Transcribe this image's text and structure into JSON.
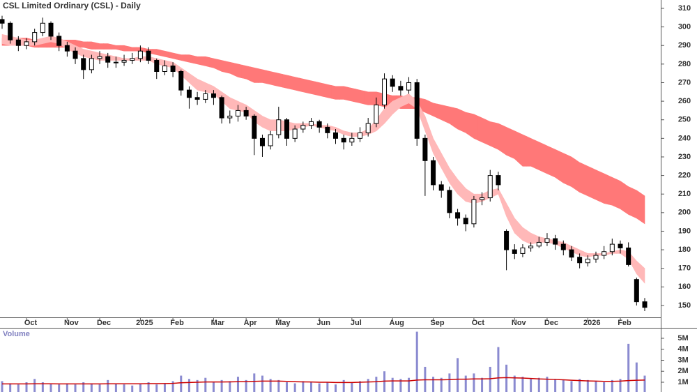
{
  "chart_data": {
    "type": "candlestick",
    "title": "CSL Limited Ordinary (CSL) - Daily",
    "categories": [
      null,
      null,
      null,
      "Oct",
      null,
      null,
      null,
      null,
      "Nov",
      null,
      null,
      null,
      "Dec",
      null,
      null,
      null,
      null,
      "2025",
      null,
      null,
      null,
      "Feb",
      null,
      null,
      null,
      null,
      "Mar",
      null,
      null,
      null,
      "Apr",
      null,
      null,
      null,
      "May",
      null,
      null,
      null,
      null,
      "Jun",
      null,
      null,
      null,
      "Jul",
      null,
      null,
      null,
      null,
      "Aug",
      null,
      null,
      null,
      null,
      "Sep",
      null,
      null,
      null,
      null,
      "Oct",
      null,
      null,
      null,
      null,
      "Nov",
      null,
      null,
      null,
      "Dec",
      null,
      null,
      null,
      null,
      "2026",
      null,
      null,
      null,
      "Feb",
      null,
      null,
      null
    ],
    "open": [
      304,
      302,
      293,
      290,
      292,
      297,
      302,
      295,
      290,
      287,
      283,
      277,
      283,
      284,
      281,
      281,
      282,
      283,
      287,
      282,
      276,
      279,
      276,
      266,
      262,
      261,
      264,
      262,
      251,
      252,
      255,
      252,
      240,
      236,
      242,
      250,
      240,
      245,
      247,
      249,
      246,
      243,
      240,
      238,
      240,
      243,
      248,
      258,
      272,
      268,
      266,
      270,
      240,
      228,
      215,
      212,
      200,
      197,
      194,
      207,
      208,
      220,
      190,
      180,
      178,
      181,
      182,
      184,
      186,
      183,
      180,
      176,
      173,
      175,
      177,
      179,
      183,
      181,
      164,
      152
    ],
    "high": [
      306,
      303,
      295,
      294,
      299,
      305,
      303,
      297,
      292,
      289,
      285,
      285,
      287,
      286,
      284,
      285,
      286,
      290,
      289,
      283,
      282,
      281,
      277,
      268,
      265,
      266,
      266,
      263,
      255,
      258,
      257,
      253,
      242,
      244,
      257,
      251,
      247,
      249,
      251,
      250,
      248,
      245,
      242,
      243,
      246,
      251,
      262,
      275,
      274,
      271,
      273,
      272,
      242,
      230,
      217,
      214,
      202,
      199,
      209,
      211,
      223,
      222,
      191,
      183,
      183,
      184,
      187,
      189,
      188,
      185,
      182,
      178,
      177,
      179,
      182,
      186,
      185,
      184,
      165,
      154
    ],
    "low": [
      299,
      291,
      287,
      288,
      290,
      295,
      293,
      287,
      284,
      280,
      272,
      275,
      280,
      278,
      278,
      279,
      280,
      281,
      280,
      272,
      274,
      273,
      263,
      256,
      258,
      259,
      258,
      248,
      248,
      249,
      250,
      231,
      230,
      234,
      240,
      236,
      238,
      243,
      245,
      243,
      240,
      237,
      234,
      236,
      238,
      241,
      246,
      256,
      265,
      263,
      264,
      236,
      209,
      212,
      208,
      197,
      193,
      190,
      192,
      204,
      206,
      212,
      169,
      175,
      176,
      179,
      181,
      182,
      180,
      177,
      174,
      170,
      171,
      173,
      175,
      177,
      178,
      171,
      150,
      147
    ],
    "close": [
      302,
      293,
      290,
      292,
      297,
      302,
      295,
      290,
      287,
      283,
      277,
      283,
      284,
      281,
      281,
      282,
      283,
      287,
      282,
      276,
      279,
      276,
      266,
      262,
      261,
      264,
      262,
      251,
      252,
      255,
      252,
      240,
      236,
      242,
      250,
      240,
      245,
      247,
      249,
      246,
      243,
      240,
      238,
      240,
      243,
      248,
      258,
      272,
      268,
      266,
      270,
      240,
      228,
      215,
      212,
      200,
      197,
      194,
      207,
      208,
      220,
      215,
      180,
      178,
      181,
      182,
      184,
      186,
      183,
      180,
      176,
      173,
      175,
      177,
      179,
      183,
      181,
      172,
      152,
      149
    ],
    "up_color": "#ffffff",
    "down_color": "#000000",
    "ribbons": [
      {
        "color": "#ff7878",
        "upper": [
          294,
          294,
          294,
          294,
          293,
          293,
          293,
          293,
          293,
          293,
          292,
          292,
          291,
          291,
          290,
          290,
          289,
          289,
          288,
          288,
          287,
          286,
          285,
          285,
          284,
          284,
          283,
          282,
          281,
          280,
          279,
          278,
          277,
          276,
          275,
          274,
          273,
          272,
          271,
          270,
          269,
          268,
          268,
          267,
          266,
          265,
          265,
          264,
          263,
          263,
          262,
          262,
          261,
          259,
          258,
          257,
          256,
          254,
          253,
          251,
          249,
          248,
          246,
          244,
          242,
          240,
          238,
          236,
          234,
          232,
          230,
          227,
          225,
          223,
          221,
          219,
          217,
          214,
          212,
          209
        ],
        "lower": [
          290,
          290,
          290,
          290,
          289,
          289,
          289,
          289,
          289,
          289,
          289,
          288,
          288,
          288,
          288,
          287,
          287,
          287,
          286,
          285,
          284,
          283,
          282,
          281,
          280,
          279,
          278,
          276,
          275,
          273,
          272,
          270,
          270,
          269,
          268,
          267,
          266,
          265,
          264,
          263,
          262,
          261,
          261,
          260,
          259,
          258,
          258,
          257,
          257,
          256,
          256,
          256,
          254,
          252,
          250,
          248,
          245,
          243,
          240,
          238,
          236,
          234,
          231,
          229,
          225,
          225,
          223,
          221,
          219,
          216,
          214,
          211,
          209,
          207,
          205,
          204,
          202,
          199,
          197,
          194
        ]
      },
      {
        "color": "#ffb8b8",
        "upper": [
          296,
          295,
          294,
          293,
          293,
          294,
          295,
          294,
          292,
          290,
          288,
          287,
          286,
          285,
          284,
          283,
          283,
          284,
          284,
          283,
          282,
          281,
          278,
          275,
          272,
          270,
          268,
          265,
          262,
          260,
          258,
          255,
          252,
          250,
          250,
          249,
          248,
          248,
          248,
          247,
          247,
          246,
          244,
          243,
          243,
          245,
          250,
          256,
          260,
          262,
          264,
          260,
          252,
          240,
          232,
          224,
          218,
          213,
          210,
          210,
          212,
          213,
          205,
          197,
          192,
          189,
          187,
          186,
          185,
          184,
          182,
          180,
          178,
          178,
          178,
          179,
          180,
          179,
          174,
          170
        ],
        "lower": [
          291,
          290,
          290,
          290,
          290,
          291,
          292,
          291,
          288,
          286,
          284,
          283,
          282,
          282,
          282,
          282,
          282,
          282,
          282,
          280,
          279,
          278,
          274,
          270,
          266,
          265,
          264,
          260,
          256,
          255,
          254,
          249,
          246,
          244,
          244,
          244,
          245,
          246,
          247,
          246,
          245,
          244,
          242,
          241,
          241,
          242,
          244,
          248,
          253,
          257,
          259,
          256,
          244,
          232,
          224,
          216,
          210,
          206,
          205,
          206,
          208,
          210,
          198,
          189,
          185,
          183,
          184,
          184,
          183,
          181,
          179,
          177,
          176,
          177,
          177,
          178,
          178,
          175,
          167,
          162
        ]
      }
    ],
    "ylim": [
      143.6,
      314.5
    ],
    "yticks": [
      150,
      160,
      170,
      180,
      190,
      200,
      210,
      220,
      230,
      240,
      250,
      260,
      270,
      280,
      290,
      300,
      310
    ],
    "volume": {
      "title": "Volume",
      "color": "#8a8ad0",
      "average_color": "#cc0000",
      "values": [
        1.1,
        0.9,
        0.8,
        1.0,
        1.3,
        1.0,
        0.9,
        0.8,
        0.9,
        0.8,
        1.0,
        0.9,
        0.8,
        1.2,
        0.9,
        0.8,
        0.7,
        0.9,
        1.0,
        0.8,
        0.9,
        1.1,
        1.6,
        1.3,
        1.2,
        1.4,
        1.0,
        1.2,
        1.1,
        1.5,
        1.2,
        1.8,
        1.6,
        1.3,
        1.2,
        1.0,
        0.9,
        1.1,
        1.0,
        0.9,
        1.0,
        0.8,
        1.2,
        1.0,
        1.1,
        1.3,
        1.5,
        2.0,
        1.4,
        1.3,
        1.4,
        5.6,
        2.4,
        1.5,
        1.4,
        1.8,
        3.2,
        1.6,
        1.8,
        1.4,
        2.4,
        4.2,
        2.6,
        1.6,
        1.5,
        1.3,
        1.4,
        1.5,
        1.3,
        1.2,
        1.1,
        1.3,
        1.2,
        1.1,
        1.0,
        1.2,
        1.3,
        4.5,
        2.8,
        1.6
      ],
      "average": [
        0.85,
        0.85,
        0.85,
        0.85,
        0.86,
        0.86,
        0.86,
        0.85,
        0.85,
        0.85,
        0.85,
        0.85,
        0.85,
        0.86,
        0.86,
        0.86,
        0.86,
        0.86,
        0.87,
        0.87,
        0.88,
        0.9,
        0.95,
        0.98,
        1.0,
        1.02,
        1.02,
        1.02,
        1.03,
        1.05,
        1.05,
        1.08,
        1.1,
        1.1,
        1.1,
        1.08,
        1.05,
        1.03,
        1.02,
        1.0,
        1.0,
        0.98,
        0.98,
        0.98,
        1.0,
        1.02,
        1.05,
        1.1,
        1.12,
        1.12,
        1.12,
        1.2,
        1.22,
        1.22,
        1.22,
        1.24,
        1.28,
        1.28,
        1.3,
        1.3,
        1.32,
        1.4,
        1.42,
        1.4,
        1.38,
        1.34,
        1.3,
        1.28,
        1.25,
        1.22,
        1.18,
        1.15,
        1.12,
        1.1,
        1.08,
        1.08,
        1.1,
        1.15,
        1.18,
        1.2
      ],
      "ylim": [
        0,
        6
      ],
      "yticks": [
        {
          "value": 1,
          "label": "1M"
        },
        {
          "value": 2,
          "label": "2M"
        },
        {
          "value": 3,
          "label": "3M"
        },
        {
          "value": 4,
          "label": "4M"
        },
        {
          "value": 5,
          "label": "5M"
        }
      ]
    }
  }
}
